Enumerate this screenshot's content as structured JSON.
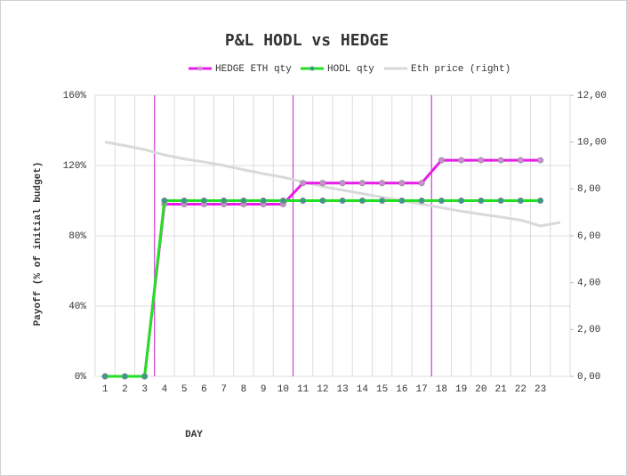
{
  "chart_data": {
    "type": "line",
    "title": "P&L HODL vs HEDGE",
    "x_label": "DAY",
    "y_label": "Payoff (% of initial budget)",
    "categories": [
      "1",
      "2",
      "3",
      "4",
      "5",
      "6",
      "7",
      "8",
      "9",
      "10",
      "11",
      "12",
      "13",
      "14",
      "15",
      "16",
      "17",
      "18",
      "19",
      "20",
      "21",
      "22",
      "23",
      null
    ],
    "ylim": [
      0,
      160
    ],
    "yticks": [
      {
        "value": 0,
        "label": "0%"
      },
      {
        "value": 40,
        "label": "40%"
      },
      {
        "value": 80,
        "label": "80%"
      },
      {
        "value": 120,
        "label": "120%"
      },
      {
        "value": 160,
        "label": "160%"
      }
    ],
    "y2lim": [
      0,
      12
    ],
    "y2ticks": [
      {
        "value": 0,
        "label": "0,00"
      },
      {
        "value": 2,
        "label": "2,00"
      },
      {
        "value": 4,
        "label": "4,00"
      },
      {
        "value": 6,
        "label": "6,00"
      },
      {
        "value": 8,
        "label": "8,00"
      },
      {
        "value": 10,
        "label": "10,00"
      },
      {
        "value": 12,
        "label": "12,00"
      }
    ],
    "grid": true,
    "legend": "top",
    "series": [
      {
        "name": "HEDGE ETH qty",
        "color": "#e81ee8",
        "marker_color": "#c98fd0",
        "values": [
          0,
          0,
          0,
          98,
          98,
          98,
          98,
          98,
          98,
          98,
          110,
          110,
          110,
          110,
          110,
          110,
          110,
          123,
          123,
          123,
          123,
          123,
          123,
          null
        ]
      },
      {
        "name": "HODL qty",
        "color": "#22e022",
        "marker_color": "#3a9a8a",
        "values": [
          0,
          0,
          0,
          100,
          100,
          100,
          100,
          100,
          100,
          100,
          100,
          100,
          100,
          100,
          100,
          100,
          100,
          100,
          100,
          100,
          100,
          100,
          100,
          null
        ]
      },
      {
        "name": "Eth price  (right)",
        "color": "#d9d9d9",
        "axis": "y2",
        "values": [
          10.0,
          9.85,
          9.68,
          9.45,
          9.28,
          9.15,
          9.0,
          8.82,
          8.65,
          8.5,
          8.3,
          8.1,
          7.95,
          7.8,
          7.65,
          7.5,
          7.35,
          7.2,
          7.05,
          6.92,
          6.8,
          6.67,
          6.42,
          6.57
        ]
      }
    ]
  }
}
